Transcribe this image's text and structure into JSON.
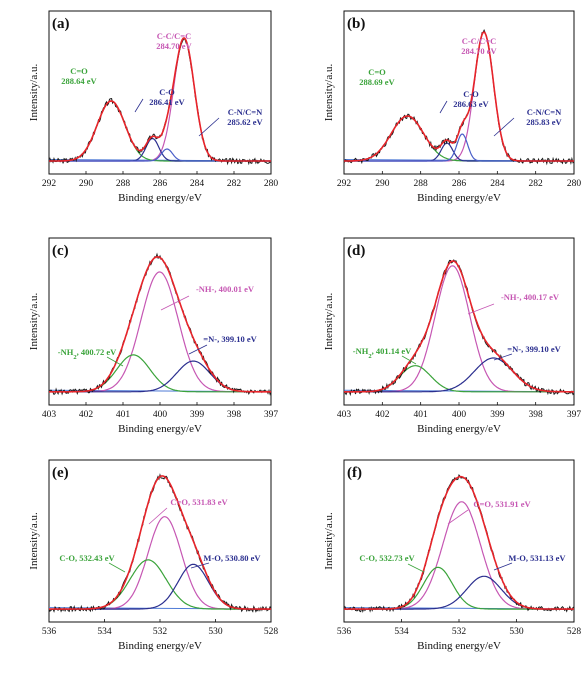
{
  "colors": {
    "raw": "#1a1a1a",
    "fit": "#e8242a",
    "magenta": "#c657b3",
    "green": "#3aa33a",
    "navy": "#2b2f8f",
    "blue": "#4a5fc9",
    "baseline": "#4f7bd6"
  },
  "chart_data": [
    {
      "id": "a",
      "type": "line",
      "panel_label": "(a)",
      "xlabel": "Binding energy/eV",
      "ylabel": "Intensity/a.u.",
      "xlim": [
        292,
        280
      ],
      "xticks": [
        "292",
        "290",
        "288",
        "286",
        "284",
        "282",
        "280"
      ],
      "series": [
        {
          "center": 284.7,
          "amplitude": 0.82,
          "width": 0.55,
          "color_key": "magenta"
        },
        {
          "center": 288.64,
          "amplitude": 0.4,
          "width": 0.75,
          "color_key": "green"
        },
        {
          "center": 286.41,
          "amplitude": 0.15,
          "width": 0.35,
          "color_key": "navy"
        },
        {
          "center": 285.62,
          "amplitude": 0.08,
          "width": 0.3,
          "color_key": "blue"
        }
      ],
      "annotations": [
        {
          "lines": [
            "C-C/C=C",
            "284.70 eV"
          ],
          "color_key": "magenta"
        },
        {
          "lines": [
            "C=O",
            "288.64 eV"
          ],
          "color_key": "green"
        },
        {
          "lines": [
            "C-O",
            "286.41 eV"
          ],
          "color_key": "navy"
        },
        {
          "lines": [
            "C-N/C=N",
            "285.62 eV"
          ],
          "color_key": "navy"
        }
      ]
    },
    {
      "id": "b",
      "type": "line",
      "panel_label": "(b)",
      "xlabel": "Binding energy/eV",
      "ylabel": "Intensity/a.u.",
      "xlim": [
        292,
        280
      ],
      "xticks": [
        "292",
        "290",
        "288",
        "286",
        "284",
        "282",
        "280"
      ],
      "series": [
        {
          "center": 284.7,
          "amplitude": 0.86,
          "width": 0.5,
          "color_key": "magenta"
        },
        {
          "center": 288.69,
          "amplitude": 0.3,
          "width": 0.85,
          "color_key": "green"
        },
        {
          "center": 286.63,
          "amplitude": 0.12,
          "width": 0.3,
          "color_key": "navy"
        },
        {
          "center": 285.83,
          "amplitude": 0.18,
          "width": 0.28,
          "color_key": "blue"
        }
      ],
      "annotations": [
        {
          "lines": [
            "C-C/C=C",
            "284.70 eV"
          ],
          "color_key": "magenta"
        },
        {
          "lines": [
            "C=O",
            "288.69 eV"
          ],
          "color_key": "green"
        },
        {
          "lines": [
            "C-O",
            "286.63 eV"
          ],
          "color_key": "navy"
        },
        {
          "lines": [
            "C-N/C=N",
            "285.83 eV"
          ],
          "color_key": "navy"
        }
      ]
    },
    {
      "id": "c",
      "type": "line",
      "panel_label": "(c)",
      "xlabel": "Binding energy/eV",
      "ylabel": "Intensity/a.u.",
      "xlim": [
        403,
        397
      ],
      "xticks": [
        "403",
        "402",
        "401",
        "400",
        "399",
        "398",
        "397"
      ],
      "series": [
        {
          "center": 400.01,
          "amplitude": 0.78,
          "width": 0.5,
          "color_key": "magenta"
        },
        {
          "center": 400.72,
          "amplitude": 0.24,
          "width": 0.45,
          "color_key": "green"
        },
        {
          "center": 399.1,
          "amplitude": 0.2,
          "width": 0.45,
          "color_key": "navy"
        }
      ],
      "annotations": [
        {
          "lines": [
            "-NH-, 400.01 eV"
          ],
          "color_key": "magenta"
        },
        {
          "lines": [
            "-NH",
            "2",
            ", 400.72 eV"
          ],
          "color_key": "green"
        },
        {
          "lines": [
            "=N-, 399.10 eV"
          ],
          "color_key": "navy"
        }
      ]
    },
    {
      "id": "d",
      "type": "line",
      "panel_label": "(d)",
      "xlabel": "Binding energy/eV",
      "ylabel": "Intensity/a.u.",
      "xlim": [
        403,
        397
      ],
      "xticks": [
        "403",
        "402",
        "401",
        "400",
        "399",
        "398",
        "397"
      ],
      "series": [
        {
          "center": 400.17,
          "amplitude": 0.82,
          "width": 0.45,
          "color_key": "magenta"
        },
        {
          "center": 401.14,
          "amplitude": 0.17,
          "width": 0.4,
          "color_key": "green"
        },
        {
          "center": 399.1,
          "amplitude": 0.22,
          "width": 0.5,
          "color_key": "navy"
        }
      ],
      "annotations": [
        {
          "lines": [
            "-NH-, 400.17 eV"
          ],
          "color_key": "magenta"
        },
        {
          "lines": [
            "-NH",
            "2",
            ", 401.14 eV"
          ],
          "color_key": "green"
        },
        {
          "lines": [
            "=N-, 399.10 eV"
          ],
          "color_key": "navy"
        }
      ]
    },
    {
      "id": "e",
      "type": "line",
      "panel_label": "(e)",
      "xlabel": "Binding energy/eV",
      "ylabel": "Intensity/a.u.",
      "xlim": [
        536,
        528
      ],
      "xticks": [
        "536",
        "534",
        "532",
        "530",
        "528"
      ],
      "series": [
        {
          "center": 531.83,
          "amplitude": 0.62,
          "width": 0.6,
          "color_key": "magenta"
        },
        {
          "center": 532.43,
          "amplitude": 0.33,
          "width": 0.65,
          "color_key": "green"
        },
        {
          "center": 530.8,
          "amplitude": 0.3,
          "width": 0.55,
          "color_key": "navy"
        }
      ],
      "annotations": [
        {
          "lines": [
            "C=O, 531.83 eV"
          ],
          "color_key": "magenta"
        },
        {
          "lines": [
            "C-O, 532.43 eV"
          ],
          "color_key": "green"
        },
        {
          "lines": [
            "M-O, 530.80 eV"
          ],
          "color_key": "navy"
        }
      ]
    },
    {
      "id": "f",
      "type": "line",
      "panel_label": "(f)",
      "xlabel": "Binding energy/eV",
      "ylabel": "Intensity/a.u.",
      "xlim": [
        536,
        528
      ],
      "xticks": [
        "536",
        "534",
        "532",
        "530",
        "528"
      ],
      "series": [
        {
          "center": 531.91,
          "amplitude": 0.72,
          "width": 0.65,
          "color_key": "magenta"
        },
        {
          "center": 532.73,
          "amplitude": 0.28,
          "width": 0.5,
          "color_key": "green"
        },
        {
          "center": 531.13,
          "amplitude": 0.22,
          "width": 0.6,
          "color_key": "navy"
        }
      ],
      "annotations": [
        {
          "lines": [
            "C=O, 531.91 eV"
          ],
          "color_key": "magenta"
        },
        {
          "lines": [
            "C-O, 532.73 eV"
          ],
          "color_key": "green"
        },
        {
          "lines": [
            "M-O, 531.13 eV"
          ],
          "color_key": "navy"
        }
      ]
    }
  ]
}
